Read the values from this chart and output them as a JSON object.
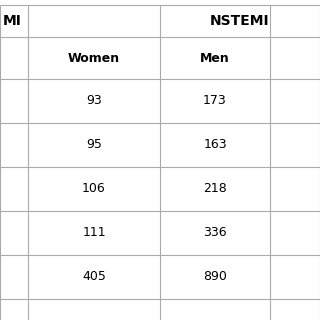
{
  "background": "#ffffff",
  "line_color": "#aaaaaa",
  "text_color": "#000000",
  "group_label_left": "MI",
  "group_label_right": "NSTEMI",
  "col_header_1": "Women",
  "col_header_2": "Men",
  "col_values_1": [
    93,
    95,
    106,
    111,
    405
  ],
  "col_values_2": [
    173,
    163,
    218,
    336,
    890
  ],
  "group_fontsize": 10,
  "header_fontsize": 9,
  "cell_fontsize": 9
}
